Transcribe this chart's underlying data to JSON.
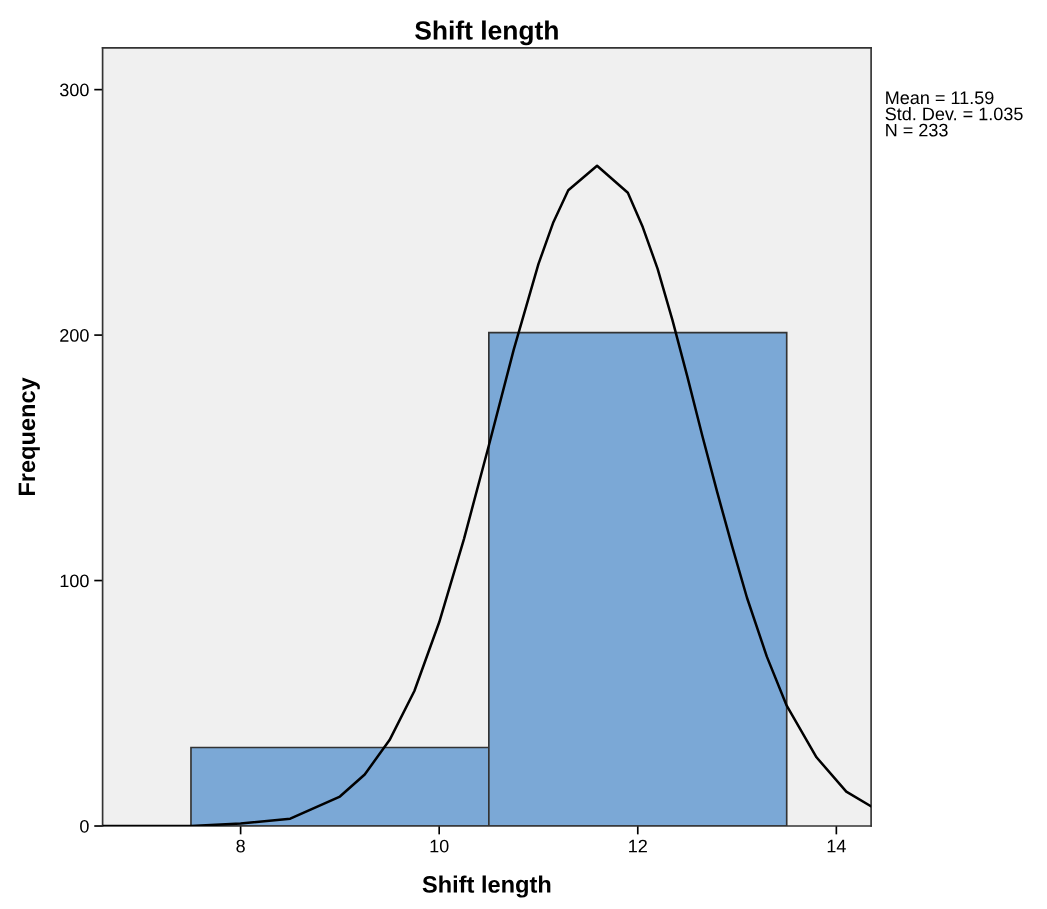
{
  "chart_data": {
    "type": "histogram",
    "title": "Shift length",
    "xlabel": "Shift length",
    "ylabel": "Frequency",
    "bins": [
      7.5,
      10.5,
      13.5
    ],
    "values": [
      32,
      201
    ],
    "color": "#7ba8d6",
    "series": [
      {
        "type": "line",
        "color": "#000000",
        "x": [
          6.61,
          7.0,
          7.5,
          8.0,
          8.5,
          9.0,
          9.25,
          9.5,
          9.75,
          10.0,
          10.25,
          10.5,
          10.75,
          11.0,
          11.15,
          11.3,
          11.59,
          11.9,
          12.05,
          12.2,
          12.35,
          12.5,
          12.65,
          12.8,
          12.95,
          13.1,
          13.3,
          13.5,
          13.8,
          14.1,
          14.35
        ],
        "values": [
          0,
          0,
          0,
          1,
          3,
          12,
          21,
          35,
          55,
          83,
          117,
          155,
          194,
          229,
          246,
          259,
          269,
          258,
          244,
          227,
          206,
          183,
          159,
          136,
          114,
          93,
          69,
          49,
          28,
          14,
          8
        ]
      }
    ],
    "xlim": [
      6.61,
      14.35
    ],
    "xticks": [
      8,
      10,
      12,
      14
    ],
    "ylim": [
      0,
      317
    ],
    "yticks": [
      0,
      100,
      200,
      300
    ],
    "grid": false,
    "legend": false,
    "annotations": [
      "Mean = 11.59",
      "Std. Dev. = 1.035",
      "N = 233"
    ]
  }
}
